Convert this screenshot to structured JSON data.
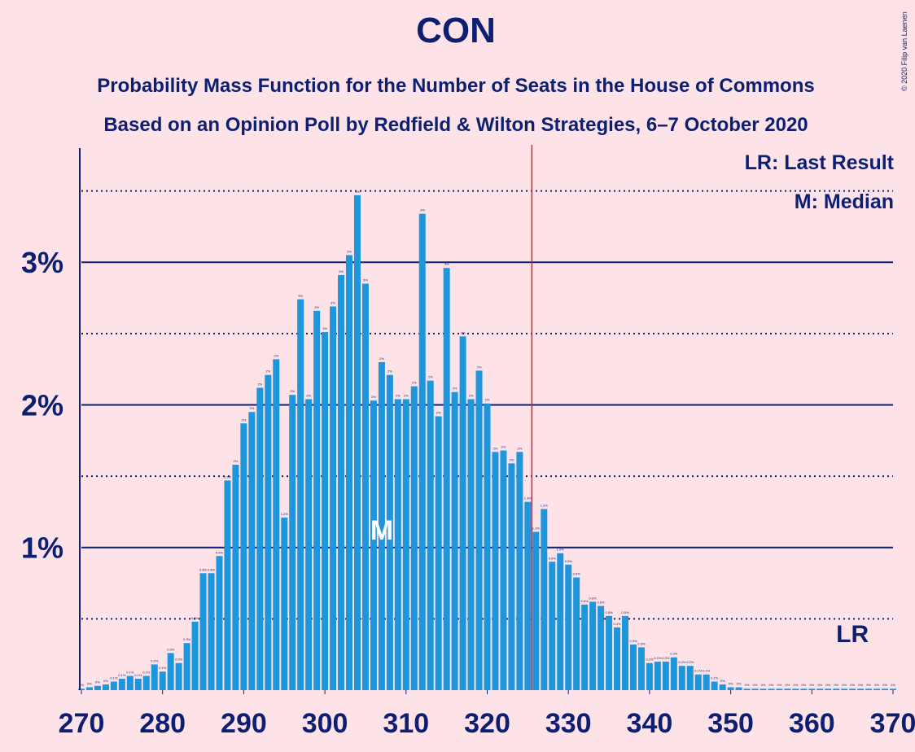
{
  "chart_data": {
    "type": "bar",
    "title": "CON",
    "subtitle": "Probability Mass Function for the Number of Seats in the House of Commons",
    "subtitle2": "Based on an Opinion Poll by Redfield & Wilton Strategies, 6–7 October 2020",
    "credit": "© 2020 Filip van Laenen",
    "legend": [
      "LR: Last Result",
      "M: Median"
    ],
    "color": "#1e96dc",
    "x": [
      270,
      271,
      272,
      273,
      274,
      275,
      276,
      277,
      278,
      279,
      280,
      281,
      282,
      283,
      284,
      285,
      286,
      287,
      288,
      289,
      290,
      291,
      292,
      293,
      294,
      295,
      296,
      297,
      298,
      299,
      300,
      301,
      302,
      303,
      304,
      305,
      306,
      307,
      308,
      309,
      310,
      311,
      312,
      313,
      314,
      315,
      316,
      317,
      318,
      319,
      320,
      321,
      322,
      323,
      324,
      325,
      326,
      327,
      328,
      329,
      330,
      331,
      332,
      333,
      334,
      335,
      336,
      337,
      338,
      339,
      340,
      341,
      342,
      343,
      344,
      345,
      346,
      347,
      348,
      349,
      350,
      351,
      352,
      353,
      354,
      355,
      356,
      357,
      358,
      359,
      360,
      361,
      362,
      363,
      364,
      365,
      366,
      367,
      368,
      369,
      370
    ],
    "values": [
      0.01,
      0.02,
      0.03,
      0.04,
      0.06,
      0.08,
      0.1,
      0.08,
      0.1,
      0.18,
      0.13,
      0.26,
      0.19,
      0.33,
      0.48,
      0.82,
      0.82,
      0.94,
      1.47,
      1.58,
      1.87,
      1.95,
      2.12,
      2.21,
      2.32,
      1.21,
      2.07,
      2.74,
      2.04,
      2.66,
      2.51,
      2.69,
      2.91,
      3.05,
      3.47,
      2.85,
      2.03,
      2.3,
      2.21,
      2.04,
      2.04,
      2.13,
      3.34,
      2.17,
      1.92,
      2.96,
      2.09,
      2.48,
      2.04,
      2.24,
      2.01,
      1.67,
      1.68,
      1.59,
      1.67,
      1.32,
      1.11,
      1.27,
      0.9,
      0.96,
      0.88,
      0.79,
      0.6,
      0.62,
      0.59,
      0.52,
      0.44,
      0.52,
      0.32,
      0.3,
      0.19,
      0.2,
      0.2,
      0.23,
      0.17,
      0.17,
      0.11,
      0.11,
      0.06,
      0.04,
      0.02,
      0.02,
      0.01,
      0.01,
      0.01,
      0.01,
      0.01,
      0.01,
      0.01,
      0.01,
      0.01,
      0.01,
      0.01,
      0.01,
      0.01,
      0.01,
      0.01,
      0.01,
      0.01,
      0.01,
      0.01
    ],
    "value_labels": [
      "0%",
      "0%",
      "0%",
      "0%",
      "0.1%",
      "0.1%",
      "0.1%",
      "0.1%",
      "0.1%",
      "0.2%",
      "0.1%",
      "0.3%",
      "0.2%",
      "0.3%",
      "0.5%",
      "0.8%",
      "0.8%",
      "0.9%",
      "1.5%",
      "2%",
      "2%",
      "2%",
      "2%",
      "2%",
      "2%",
      "1.2%",
      "2%",
      "3%",
      "2%",
      "3%",
      "3%",
      "3%",
      "3%",
      "3%",
      "3%",
      "3%",
      "2%",
      "2%",
      "2%",
      "2%",
      "2%",
      "2%",
      "3%",
      "2%",
      "2%",
      "3%",
      "2%",
      "2%",
      "2%",
      "2%",
      "2%",
      "2%",
      "2%",
      "2%",
      "2%",
      "1.3%",
      "1.1%",
      "1.3%",
      "0.9%",
      "1.0%",
      "0.9%",
      "0.8%",
      "0.6%",
      "0.6%",
      "0.6%",
      "0.5%",
      "0.4%",
      "0.5%",
      "0.3%",
      "0.3%",
      "0.2%",
      "0.2%",
      "0.2%",
      "0.2%",
      "0.2%",
      "0.2%",
      "0.1%",
      "0.1%",
      "0.1%",
      "0%",
      "0%",
      "0%",
      "0%",
      "0%",
      "0%",
      "0%",
      "0%",
      "0%",
      "0%",
      "0%",
      "0%",
      "0%",
      "0%",
      "0%",
      "0%",
      "0%",
      "0%",
      "0%",
      "0%",
      "0%",
      "0%"
    ],
    "xlim": [
      270,
      370
    ],
    "xticks": [
      270,
      280,
      290,
      300,
      310,
      320,
      330,
      340,
      350,
      360,
      370
    ],
    "ylim": [
      0,
      3.8
    ],
    "yticks": [
      {
        "value": 1,
        "label": "1%"
      },
      {
        "value": 2,
        "label": "2%"
      },
      {
        "value": 3,
        "label": "3%"
      }
    ],
    "minor_yticks": [
      0.5,
      1.5,
      2.5,
      3.5
    ],
    "majority_line": 325.5,
    "median": {
      "seat": 307,
      "label": "M"
    },
    "last_result": {
      "seat": 365,
      "label": "LR"
    }
  }
}
